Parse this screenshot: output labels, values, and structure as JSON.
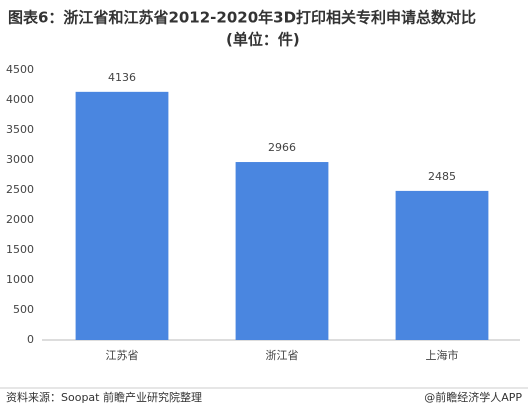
{
  "chart_data": {
    "type": "bar",
    "title": [
      "图表6：浙江省和江苏省2012-2020年3D打印相关专利申请总数对比",
      "(单位：件)"
    ],
    "categories": [
      "江苏省",
      "浙江省",
      "上海市"
    ],
    "values": [
      4136,
      2966,
      2485
    ],
    "color": "#4a86e0",
    "ylim": [
      0,
      4500
    ],
    "yticks": [
      0,
      500,
      1000,
      1500,
      2000,
      2500,
      3000,
      3500,
      4000,
      4500
    ],
    "grid": false,
    "source": "资料来源：Soopat 前瞻产业研究院整理",
    "credit": "@前瞻经济学人APP"
  }
}
